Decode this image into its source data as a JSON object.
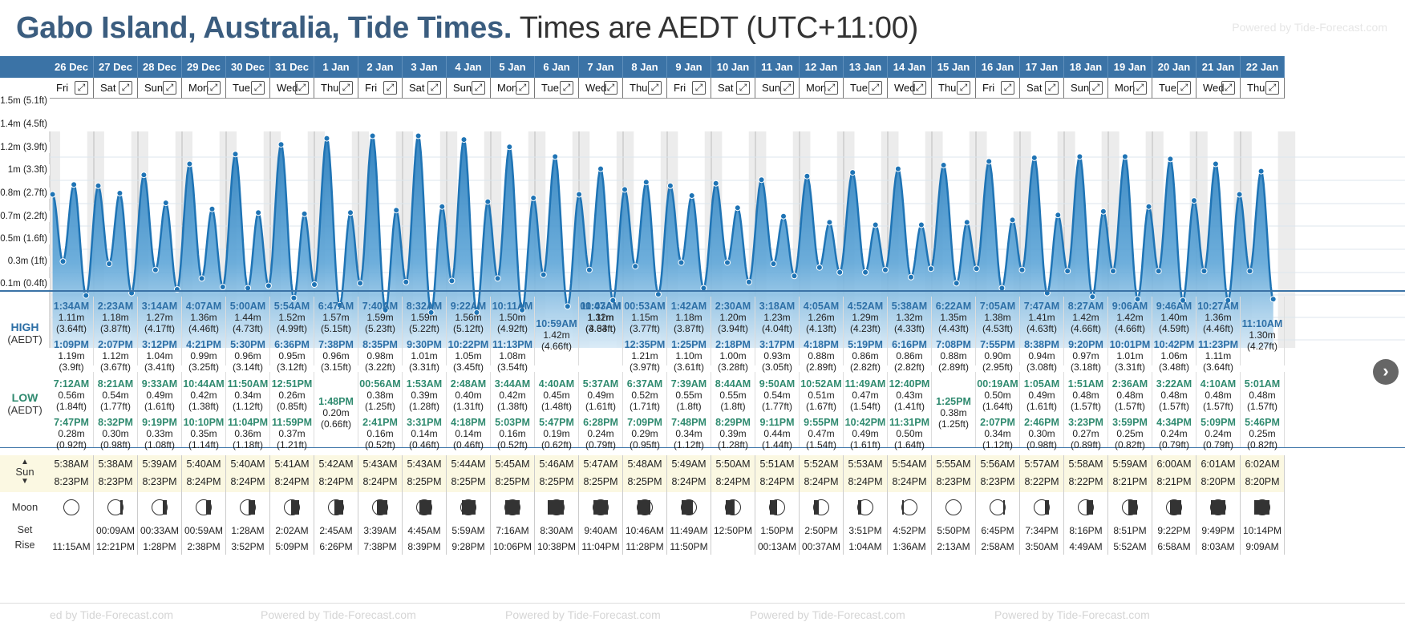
{
  "title": {
    "location": "Gabo Island, Australia, Tide Times.",
    "timezone": "Times are AEDT (UTC+11:00)"
  },
  "powered_by": "Powered by Tide-Forecast.com",
  "labels": {
    "high": "HIGH",
    "low": "LOW",
    "tz": "(AEDT)",
    "sun": "Sun",
    "moon": "Moon",
    "set": "Set",
    "rise": "Rise"
  },
  "icons": {
    "expand": "expand-icon",
    "next": "chevron-right-icon",
    "sun_arrows": "up-down-arrow-icon"
  },
  "colors": {
    "header": "#3b73a6",
    "tide_fill": "#2d7fc0",
    "high_text": "#2d6fa6",
    "low_text": "#2f8a6f",
    "sun_row": "#fbf8e2"
  },
  "y_axis_labels": [
    "1.5m (5.1ft)",
    "1.4m (4.5ft)",
    "1.2m (3.9ft)",
    "1m (3.3ft)",
    "0.8m (2.7ft)",
    "0.7m (2.2ft)",
    "0.5m (1.6ft)",
    "0.3m (1ft)",
    "0.1m (0.4ft)"
  ],
  "footer": [
    "ed by Tide-Forecast.com",
    "Powered by Tide-Forecast.com",
    "Powered by Tide-Forecast.com",
    "Powered by Tide-Forecast.com",
    "Powered by Tide-Forecast.com"
  ],
  "days": [
    {
      "date": "26 Dec",
      "dow": "Fri",
      "highs": [
        {
          "t": "1:34AM",
          "m": "1.11m",
          "f": "(3.64ft)"
        },
        {
          "t": "1:09PM",
          "m": "1.19m",
          "f": "(3.9ft)"
        }
      ],
      "lows": [
        {
          "t": "7:12AM",
          "m": "0.56m",
          "f": "(1.84ft)"
        },
        {
          "t": "7:47PM",
          "m": "0.28m",
          "f": "(0.92ft)"
        }
      ],
      "sunrise": "5:38AM",
      "sunset": "8:23PM",
      "moon_set": "",
      "moon_rise": "11:15AM"
    },
    {
      "date": "27 Dec",
      "dow": "Sat",
      "highs": [
        {
          "t": "2:23AM",
          "m": "1.18m",
          "f": "(3.87ft)"
        },
        {
          "t": "2:07PM",
          "m": "1.12m",
          "f": "(3.67ft)"
        }
      ],
      "lows": [
        {
          "t": "8:21AM",
          "m": "0.54m",
          "f": "(1.77ft)"
        },
        {
          "t": "8:32PM",
          "m": "0.30m",
          "f": "(0.98ft)"
        }
      ],
      "sunrise": "5:38AM",
      "sunset": "8:23PM",
      "moon_set": "00:09AM",
      "moon_rise": "12:21PM"
    },
    {
      "date": "28 Dec",
      "dow": "Sun",
      "highs": [
        {
          "t": "3:14AM",
          "m": "1.27m",
          "f": "(4.17ft)"
        },
        {
          "t": "3:12PM",
          "m": "1.04m",
          "f": "(3.41ft)"
        }
      ],
      "lows": [
        {
          "t": "9:33AM",
          "m": "0.49m",
          "f": "(1.61ft)"
        },
        {
          "t": "9:19PM",
          "m": "0.33m",
          "f": "(1.08ft)"
        }
      ],
      "sunrise": "5:39AM",
      "sunset": "8:23PM",
      "moon_set": "00:33AM",
      "moon_rise": "1:28PM"
    },
    {
      "date": "29 Dec",
      "dow": "Mon",
      "highs": [
        {
          "t": "4:07AM",
          "m": "1.36m",
          "f": "(4.46ft)"
        },
        {
          "t": "4:21PM",
          "m": "0.99m",
          "f": "(3.25ft)"
        }
      ],
      "lows": [
        {
          "t": "10:44AM",
          "m": "0.42m",
          "f": "(1.38ft)"
        },
        {
          "t": "10:10PM",
          "m": "0.35m",
          "f": "(1.14ft)"
        }
      ],
      "sunrise": "5:40AM",
      "sunset": "8:24PM",
      "moon_set": "00:59AM",
      "moon_rise": "2:38PM"
    },
    {
      "date": "30 Dec",
      "dow": "Tue",
      "highs": [
        {
          "t": "5:00AM",
          "m": "1.44m",
          "f": "(4.73ft)"
        },
        {
          "t": "5:30PM",
          "m": "0.96m",
          "f": "(3.14ft)"
        }
      ],
      "lows": [
        {
          "t": "11:50AM",
          "m": "0.34m",
          "f": "(1.12ft)"
        },
        {
          "t": "11:04PM",
          "m": "0.36m",
          "f": "(1.18ft)"
        }
      ],
      "sunrise": "5:40AM",
      "sunset": "8:24PM",
      "moon_set": "1:28AM",
      "moon_rise": "3:52PM"
    },
    {
      "date": "31 Dec",
      "dow": "Wed",
      "highs": [
        {
          "t": "5:54AM",
          "m": "1.52m",
          "f": "(4.99ft)"
        },
        {
          "t": "6:36PM",
          "m": "0.95m",
          "f": "(3.12ft)"
        }
      ],
      "lows": [
        {
          "t": "12:51PM",
          "m": "0.26m",
          "f": "(0.85ft)"
        },
        {
          "t": "11:59PM",
          "m": "0.37m",
          "f": "(1.21ft)"
        }
      ],
      "sunrise": "5:41AM",
      "sunset": "8:24PM",
      "moon_set": "2:02AM",
      "moon_rise": "5:09PM"
    },
    {
      "date": "1 Jan",
      "dow": "Thu",
      "highs": [
        {
          "t": "6:47AM",
          "m": "1.57m",
          "f": "(5.15ft)"
        },
        {
          "t": "7:38PM",
          "m": "0.96m",
          "f": "(3.15ft)"
        }
      ],
      "lows": [
        {
          "t": "1:48PM",
          "m": "0.20m",
          "f": "(0.66ft)"
        }
      ],
      "sunrise": "5:42AM",
      "sunset": "8:24PM",
      "moon_set": "2:45AM",
      "moon_rise": "6:26PM"
    },
    {
      "date": "2 Jan",
      "dow": "Fri",
      "highs": [
        {
          "t": "7:40AM",
          "m": "1.59m",
          "f": "(5.23ft)"
        },
        {
          "t": "8:35PM",
          "m": "0.98m",
          "f": "(3.22ft)"
        }
      ],
      "lows": [
        {
          "t": "00:56AM",
          "m": "0.38m",
          "f": "(1.25ft)"
        },
        {
          "t": "2:41PM",
          "m": "0.16m",
          "f": "(0.52ft)"
        }
      ],
      "sunrise": "5:43AM",
      "sunset": "8:24PM",
      "moon_set": "3:39AM",
      "moon_rise": "7:38PM"
    },
    {
      "date": "3 Jan",
      "dow": "Sat",
      "highs": [
        {
          "t": "8:32AM",
          "m": "1.59m",
          "f": "(5.22ft)"
        },
        {
          "t": "9:30PM",
          "m": "1.01m",
          "f": "(3.31ft)"
        }
      ],
      "lows": [
        {
          "t": "1:53AM",
          "m": "0.39m",
          "f": "(1.28ft)"
        },
        {
          "t": "3:31PM",
          "m": "0.14m",
          "f": "(0.46ft)"
        }
      ],
      "sunrise": "5:43AM",
      "sunset": "8:25PM",
      "moon_set": "4:45AM",
      "moon_rise": "8:39PM"
    },
    {
      "date": "4 Jan",
      "dow": "Sun",
      "highs": [
        {
          "t": "9:22AM",
          "m": "1.56m",
          "f": "(5.12ft)"
        },
        {
          "t": "10:22PM",
          "m": "1.05m",
          "f": "(3.45ft)"
        }
      ],
      "lows": [
        {
          "t": "2:48AM",
          "m": "0.40m",
          "f": "(1.31ft)"
        },
        {
          "t": "4:18PM",
          "m": "0.14m",
          "f": "(0.46ft)"
        }
      ],
      "sunrise": "5:44AM",
      "sunset": "8:25PM",
      "moon_set": "5:59AM",
      "moon_rise": "9:28PM"
    },
    {
      "date": "5 Jan",
      "dow": "Mon",
      "highs": [
        {
          "t": "10:11AM",
          "m": "1.50m",
          "f": "(4.92ft)"
        },
        {
          "t": "11:13PM",
          "m": "1.08m",
          "f": "(3.54ft)"
        }
      ],
      "lows": [
        {
          "t": "3:44AM",
          "m": "0.42m",
          "f": "(1.38ft)"
        },
        {
          "t": "5:03PM",
          "m": "0.16m",
          "f": "(0.52ft)"
        }
      ],
      "sunrise": "5:45AM",
      "sunset": "8:25PM",
      "moon_set": "7:16AM",
      "moon_rise": "10:06PM"
    },
    {
      "date": "6 Jan",
      "dow": "Tue",
      "highs": [
        {
          "t": "10:59AM",
          "m": "1.42m",
          "f": "(4.66ft)"
        }
      ],
      "lows": [
        {
          "t": "4:40AM",
          "m": "0.45m",
          "f": "(1.48ft)"
        },
        {
          "t": "5:47PM",
          "m": "0.19m",
          "f": "(0.62ft)"
        }
      ],
      "sunrise": "5:46AM",
      "sunset": "8:25PM",
      "moon_set": "8:30AM",
      "moon_rise": "10:38PM"
    },
    {
      "date": "7 Jan",
      "dow": "Wed",
      "highs": [
        {
          "t": "00:03AM",
          "m": "1.11m",
          "f": "(3.64ft)"
        },
        {
          "t": "11:47AM",
          "m": "1.32m",
          "f": "(4.33ft)"
        }
      ],
      "lows": [
        {
          "t": "5:37AM",
          "m": "0.49m",
          "f": "(1.61ft)"
        },
        {
          "t": "6:28PM",
          "m": "0.24m",
          "f": "(0.79ft)"
        }
      ],
      "sunrise": "5:47AM",
      "sunset": "8:25PM",
      "moon_set": "9:40AM",
      "moon_rise": "11:04PM"
    },
    {
      "date": "8 Jan",
      "dow": "Thu",
      "highs": [
        {
          "t": "00:53AM",
          "m": "1.15m",
          "f": "(3.77ft)"
        },
        {
          "t": "12:35PM",
          "m": "1.21m",
          "f": "(3.97ft)"
        }
      ],
      "lows": [
        {
          "t": "6:37AM",
          "m": "0.52m",
          "f": "(1.71ft)"
        },
        {
          "t": "7:09PM",
          "m": "0.29m",
          "f": "(0.95ft)"
        }
      ],
      "sunrise": "5:48AM",
      "sunset": "8:25PM",
      "moon_set": "10:46AM",
      "moon_rise": "11:28PM"
    },
    {
      "date": "9 Jan",
      "dow": "Fri",
      "highs": [
        {
          "t": "1:42AM",
          "m": "1.18m",
          "f": "(3.87ft)"
        },
        {
          "t": "1:25PM",
          "m": "1.10m",
          "f": "(3.61ft)"
        }
      ],
      "lows": [
        {
          "t": "7:39AM",
          "m": "0.55m",
          "f": "(1.8ft)"
        },
        {
          "t": "7:48PM",
          "m": "0.34m",
          "f": "(1.12ft)"
        }
      ],
      "sunrise": "5:49AM",
      "sunset": "8:24PM",
      "moon_set": "11:49AM",
      "moon_rise": "11:50PM"
    },
    {
      "date": "10 Jan",
      "dow": "Sat",
      "highs": [
        {
          "t": "2:30AM",
          "m": "1.20m",
          "f": "(3.94ft)"
        },
        {
          "t": "2:18PM",
          "m": "1.00m",
          "f": "(3.28ft)"
        }
      ],
      "lows": [
        {
          "t": "8:44AM",
          "m": "0.55m",
          "f": "(1.8ft)"
        },
        {
          "t": "8:29PM",
          "m": "0.39m",
          "f": "(1.28ft)"
        }
      ],
      "sunrise": "5:50AM",
      "sunset": "8:24PM",
      "moon_set": "12:50PM",
      "moon_rise": ""
    },
    {
      "date": "11 Jan",
      "dow": "Sun",
      "highs": [
        {
          "t": "3:18AM",
          "m": "1.23m",
          "f": "(4.04ft)"
        },
        {
          "t": "3:17PM",
          "m": "0.93m",
          "f": "(3.05ft)"
        }
      ],
      "lows": [
        {
          "t": "9:50AM",
          "m": "0.54m",
          "f": "(1.77ft)"
        },
        {
          "t": "9:11PM",
          "m": "0.44m",
          "f": "(1.44ft)"
        }
      ],
      "sunrise": "5:51AM",
      "sunset": "8:24PM",
      "moon_set": "1:50PM",
      "moon_rise": "00:13AM"
    },
    {
      "date": "12 Jan",
      "dow": "Mon",
      "highs": [
        {
          "t": "4:05AM",
          "m": "1.26m",
          "f": "(4.13ft)"
        },
        {
          "t": "4:18PM",
          "m": "0.88m",
          "f": "(2.89ft)"
        }
      ],
      "lows": [
        {
          "t": "10:52AM",
          "m": "0.51m",
          "f": "(1.67ft)"
        },
        {
          "t": "9:55PM",
          "m": "0.47m",
          "f": "(1.54ft)"
        }
      ],
      "sunrise": "5:52AM",
      "sunset": "8:24PM",
      "moon_set": "2:50PM",
      "moon_rise": "00:37AM"
    },
    {
      "date": "13 Jan",
      "dow": "Tue",
      "highs": [
        {
          "t": "4:52AM",
          "m": "1.29m",
          "f": "(4.23ft)"
        },
        {
          "t": "5:19PM",
          "m": "0.86m",
          "f": "(2.82ft)"
        }
      ],
      "lows": [
        {
          "t": "11:49AM",
          "m": "0.47m",
          "f": "(1.54ft)"
        },
        {
          "t": "10:42PM",
          "m": "0.49m",
          "f": "(1.61ft)"
        }
      ],
      "sunrise": "5:53AM",
      "sunset": "8:24PM",
      "moon_set": "3:51PM",
      "moon_rise": "1:04AM"
    },
    {
      "date": "14 Jan",
      "dow": "Wed",
      "highs": [
        {
          "t": "5:38AM",
          "m": "1.32m",
          "f": "(4.33ft)"
        },
        {
          "t": "6:16PM",
          "m": "0.86m",
          "f": "(2.82ft)"
        }
      ],
      "lows": [
        {
          "t": "12:40PM",
          "m": "0.43m",
          "f": "(1.41ft)"
        },
        {
          "t": "11:31PM",
          "m": "0.50m",
          "f": "(1.64ft)"
        }
      ],
      "sunrise": "5:54AM",
      "sunset": "8:24PM",
      "moon_set": "4:52PM",
      "moon_rise": "1:36AM"
    },
    {
      "date": "15 Jan",
      "dow": "Thu",
      "highs": [
        {
          "t": "6:22AM",
          "m": "1.35m",
          "f": "(4.43ft)"
        },
        {
          "t": "7:08PM",
          "m": "0.88m",
          "f": "(2.89ft)"
        }
      ],
      "lows": [
        {
          "t": "1:25PM",
          "m": "0.38m",
          "f": "(1.25ft)"
        }
      ],
      "sunrise": "5:55AM",
      "sunset": "8:23PM",
      "moon_set": "5:50PM",
      "moon_rise": "2:13AM"
    },
    {
      "date": "16 Jan",
      "dow": "Fri",
      "highs": [
        {
          "t": "7:05AM",
          "m": "1.38m",
          "f": "(4.53ft)"
        },
        {
          "t": "7:55PM",
          "m": "0.90m",
          "f": "(2.95ft)"
        }
      ],
      "lows": [
        {
          "t": "00:19AM",
          "m": "0.50m",
          "f": "(1.64ft)"
        },
        {
          "t": "2:07PM",
          "m": "0.34m",
          "f": "(1.12ft)"
        }
      ],
      "sunrise": "5:56AM",
      "sunset": "8:23PM",
      "moon_set": "6:45PM",
      "moon_rise": "2:58AM"
    },
    {
      "date": "17 Jan",
      "dow": "Sat",
      "highs": [
        {
          "t": "7:47AM",
          "m": "1.41m",
          "f": "(4.63ft)"
        },
        {
          "t": "8:38PM",
          "m": "0.94m",
          "f": "(3.08ft)"
        }
      ],
      "lows": [
        {
          "t": "1:05AM",
          "m": "0.49m",
          "f": "(1.61ft)"
        },
        {
          "t": "2:46PM",
          "m": "0.30m",
          "f": "(0.98ft)"
        }
      ],
      "sunrise": "5:57AM",
      "sunset": "8:22PM",
      "moon_set": "7:34PM",
      "moon_rise": "3:50AM"
    },
    {
      "date": "18 Jan",
      "dow": "Sun",
      "highs": [
        {
          "t": "8:27AM",
          "m": "1.42m",
          "f": "(4.66ft)"
        },
        {
          "t": "9:20PM",
          "m": "0.97m",
          "f": "(3.18ft)"
        }
      ],
      "lows": [
        {
          "t": "1:51AM",
          "m": "0.48m",
          "f": "(1.57ft)"
        },
        {
          "t": "3:23PM",
          "m": "0.27m",
          "f": "(0.89ft)"
        }
      ],
      "sunrise": "5:58AM",
      "sunset": "8:22PM",
      "moon_set": "8:16PM",
      "moon_rise": "4:49AM"
    },
    {
      "date": "19 Jan",
      "dow": "Mon",
      "highs": [
        {
          "t": "9:06AM",
          "m": "1.42m",
          "f": "(4.66ft)"
        },
        {
          "t": "10:01PM",
          "m": "1.01m",
          "f": "(3.31ft)"
        }
      ],
      "lows": [
        {
          "t": "2:36AM",
          "m": "0.48m",
          "f": "(1.57ft)"
        },
        {
          "t": "3:59PM",
          "m": "0.25m",
          "f": "(0.82ft)"
        }
      ],
      "sunrise": "5:59AM",
      "sunset": "8:21PM",
      "moon_set": "8:51PM",
      "moon_rise": "5:52AM"
    },
    {
      "date": "20 Jan",
      "dow": "Tue",
      "highs": [
        {
          "t": "9:46AM",
          "m": "1.40m",
          "f": "(4.59ft)"
        },
        {
          "t": "10:42PM",
          "m": "1.06m",
          "f": "(3.48ft)"
        }
      ],
      "lows": [
        {
          "t": "3:22AM",
          "m": "0.48m",
          "f": "(1.57ft)"
        },
        {
          "t": "4:34PM",
          "m": "0.24m",
          "f": "(0.79ft)"
        }
      ],
      "sunrise": "6:00AM",
      "sunset": "8:21PM",
      "moon_set": "9:22PM",
      "moon_rise": "6:58AM"
    },
    {
      "date": "21 Jan",
      "dow": "Wed",
      "highs": [
        {
          "t": "10:27AM",
          "m": "1.36m",
          "f": "(4.46ft)"
        },
        {
          "t": "11:23PM",
          "m": "1.11m",
          "f": "(3.64ft)"
        }
      ],
      "lows": [
        {
          "t": "4:10AM",
          "m": "0.48m",
          "f": "(1.57ft)"
        },
        {
          "t": "5:09PM",
          "m": "0.24m",
          "f": "(0.79ft)"
        }
      ],
      "sunrise": "6:01AM",
      "sunset": "8:20PM",
      "moon_set": "9:49PM",
      "moon_rise": "8:03AM"
    },
    {
      "date": "22 Jan",
      "dow": "Thu",
      "highs": [
        {
          "t": "11:10AM",
          "m": "1.30m",
          "f": "(4.27ft)"
        }
      ],
      "lows": [
        {
          "t": "5:01AM",
          "m": "0.48m",
          "f": "(1.57ft)"
        },
        {
          "t": "5:46PM",
          "m": "0.25m",
          "f": "(0.82ft)"
        }
      ],
      "sunrise": "6:02AM",
      "sunset": "8:20PM",
      "moon_set": "10:14PM",
      "moon_rise": "9:09AM"
    }
  ],
  "moon_phases": [
    0.5,
    0.57,
    0.62,
    0.66,
    0.7,
    0.74,
    0.78,
    0.82,
    0.87,
    0.92,
    0.96,
    1.0,
    0.04,
    0.1,
    0.16,
    0.22,
    0.28,
    0.34,
    0.4,
    0.46,
    0.5,
    0.55,
    0.62,
    0.7,
    0.78,
    0.86,
    0.94,
    0.98
  ]
}
